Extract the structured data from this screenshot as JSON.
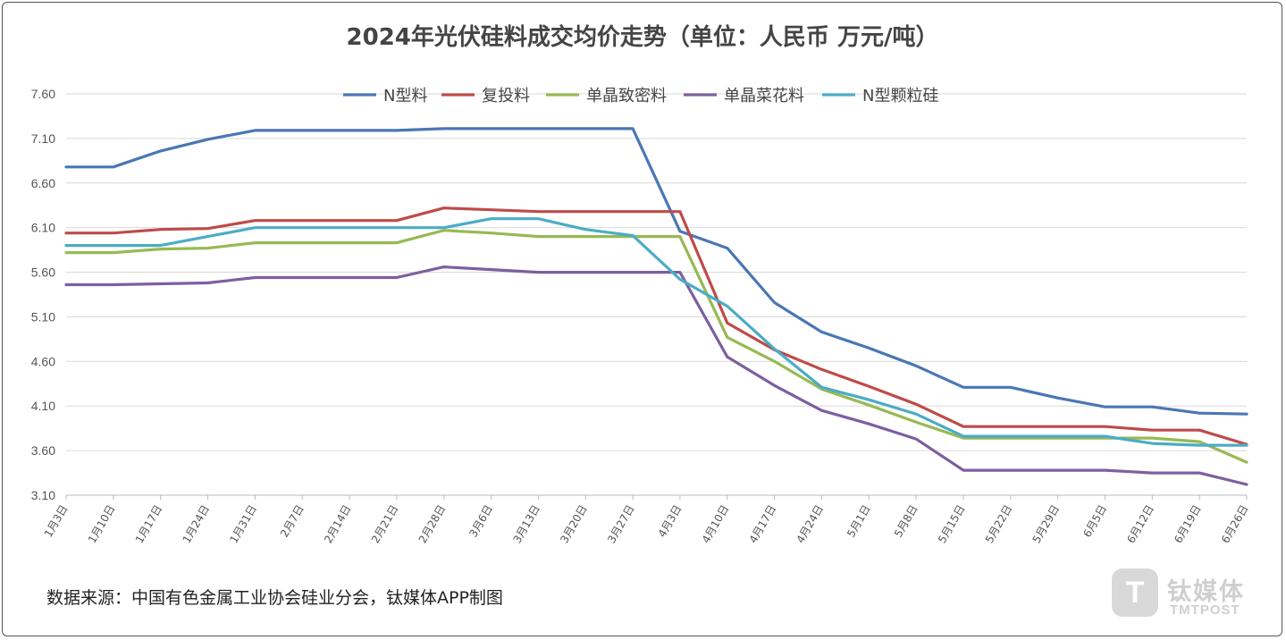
{
  "chart_data": {
    "type": "line",
    "title": "2024年光伏硅料成交均价走势（单位：人民币 万元/吨）",
    "ylim": [
      3.1,
      7.6
    ],
    "yticks": [
      "7.60",
      "7.10",
      "6.60",
      "6.10",
      "5.60",
      "5.10",
      "4.60",
      "4.10",
      "3.60",
      "3.10"
    ],
    "ytick_values": [
      7.6,
      7.1,
      6.6,
      6.1,
      5.6,
      5.1,
      4.6,
      4.1,
      3.6,
      3.1
    ],
    "categories": [
      "1月3日",
      "1月10日",
      "1月17日",
      "1月24日",
      "1月31日",
      "2月7日",
      "2月14日",
      "2月21日",
      "2月28日",
      "3月6日",
      "3月13日",
      "3月20日",
      "3月27日",
      "4月3日",
      "4月10日",
      "4月17日",
      "4月24日",
      "5月1日",
      "5月8日",
      "5月15日",
      "5月22日",
      "5月29日",
      "6月5日",
      "6月12日",
      "6月19日",
      "6月26日"
    ],
    "legend_position": "top",
    "series": [
      {
        "name": "N型料",
        "color": "#4a77b4",
        "points": [
          [
            0,
            6.78
          ],
          [
            1,
            6.78
          ],
          [
            2,
            6.96
          ],
          [
            3,
            7.09
          ],
          [
            4,
            7.19
          ],
          [
            7,
            7.19
          ],
          [
            8,
            7.21
          ],
          [
            12,
            7.21
          ],
          [
            13,
            6.06
          ],
          [
            14,
            5.87
          ],
          [
            15,
            5.26
          ],
          [
            16,
            4.93
          ],
          [
            17,
            4.75
          ],
          [
            18,
            4.55
          ],
          [
            19,
            4.31
          ],
          [
            20,
            4.31
          ],
          [
            21,
            4.19
          ],
          [
            22,
            4.09
          ],
          [
            23,
            4.09
          ],
          [
            24,
            4.02
          ],
          [
            25,
            4.01
          ]
        ]
      },
      {
        "name": "复投料",
        "color": "#be4b48",
        "points": [
          [
            0,
            6.04
          ],
          [
            1,
            6.04
          ],
          [
            2,
            6.08
          ],
          [
            3,
            6.09
          ],
          [
            4,
            6.18
          ],
          [
            7,
            6.18
          ],
          [
            8,
            6.32
          ],
          [
            9,
            6.3
          ],
          [
            10,
            6.28
          ],
          [
            13,
            6.28
          ],
          [
            14,
            5.03
          ],
          [
            15,
            4.73
          ],
          [
            16,
            4.51
          ],
          [
            17,
            4.32
          ],
          [
            18,
            4.12
          ],
          [
            19,
            3.87
          ],
          [
            22,
            3.87
          ],
          [
            23,
            3.83
          ],
          [
            24,
            3.83
          ],
          [
            25,
            3.67
          ]
        ]
      },
      {
        "name": "单晶致密料",
        "color": "#98b954",
        "points": [
          [
            0,
            5.82
          ],
          [
            1,
            5.82
          ],
          [
            2,
            5.86
          ],
          [
            3,
            5.87
          ],
          [
            4,
            5.93
          ],
          [
            7,
            5.93
          ],
          [
            8,
            6.07
          ],
          [
            9,
            6.04
          ],
          [
            10,
            6.0
          ],
          [
            13,
            6.0
          ],
          [
            14,
            4.87
          ],
          [
            15,
            4.6
          ],
          [
            16,
            4.29
          ],
          [
            17,
            4.11
          ],
          [
            18,
            3.92
          ],
          [
            19,
            3.74
          ],
          [
            23,
            3.74
          ],
          [
            24,
            3.7
          ],
          [
            25,
            3.47
          ]
        ]
      },
      {
        "name": "单晶菜花料",
        "color": "#7d5fa0",
        "points": [
          [
            0,
            5.46
          ],
          [
            1,
            5.46
          ],
          [
            2,
            5.47
          ],
          [
            3,
            5.48
          ],
          [
            4,
            5.54
          ],
          [
            7,
            5.54
          ],
          [
            8,
            5.66
          ],
          [
            9,
            5.63
          ],
          [
            10,
            5.6
          ],
          [
            13,
            5.6
          ],
          [
            14,
            4.65
          ],
          [
            15,
            4.33
          ],
          [
            16,
            4.05
          ],
          [
            17,
            3.9
          ],
          [
            18,
            3.73
          ],
          [
            19,
            3.38
          ],
          [
            22,
            3.38
          ],
          [
            23,
            3.35
          ],
          [
            24,
            3.35
          ],
          [
            25,
            3.22
          ]
        ]
      },
      {
        "name": "N型颗粒硅",
        "color": "#4bacc6",
        "points": [
          [
            0,
            5.9
          ],
          [
            1,
            5.9
          ],
          [
            2,
            5.9
          ],
          [
            3,
            6.0
          ],
          [
            4,
            6.1
          ],
          [
            8,
            6.1
          ],
          [
            9,
            6.2
          ],
          [
            10,
            6.2
          ],
          [
            11,
            6.08
          ],
          [
            12,
            6.01
          ],
          [
            13,
            5.52
          ],
          [
            14,
            5.22
          ],
          [
            15,
            4.74
          ],
          [
            16,
            4.31
          ],
          [
            17,
            4.17
          ],
          [
            18,
            4.01
          ],
          [
            19,
            3.76
          ],
          [
            22,
            3.76
          ],
          [
            23,
            3.68
          ],
          [
            24,
            3.66
          ],
          [
            25,
            3.66
          ]
        ]
      }
    ]
  },
  "footer": {
    "source": "数据来源：中国有色金属工业协会硅业分会，钛媒体APP制图",
    "brand_logo_glyph": "T",
    "brand_cn": "钛媒体",
    "brand_en": "TMTPOST"
  }
}
